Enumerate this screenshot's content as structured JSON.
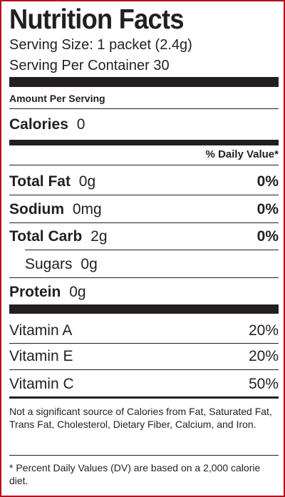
{
  "label": {
    "title": "Nutrition Facts",
    "serving_size": "Serving Size: 1 packet (2.4g)",
    "servings_per_container": "Serving Per Container 30",
    "amount_per_serving": "Amount Per Serving",
    "calories": {
      "label": "Calories",
      "value": "0"
    },
    "dv_header": "% Daily Value*",
    "nutrients": [
      {
        "name": "Total Fat",
        "amount": "0g",
        "dv": "0%"
      },
      {
        "name": "Sodium",
        "amount": "0mg",
        "dv": "0%"
      },
      {
        "name": "Total Carb",
        "amount": "2g",
        "dv": "0%"
      },
      {
        "name": "Sugars",
        "amount": "0g",
        "dv": ""
      },
      {
        "name": "Protein",
        "amount": "0g",
        "dv": ""
      }
    ],
    "vitamins": [
      {
        "name": "Vitamin A",
        "dv": "20%"
      },
      {
        "name": "Vitamin E",
        "dv": "20%"
      },
      {
        "name": "Vitamin C",
        "dv": "50%"
      }
    ],
    "not_significant": "Not a significant source of Calories from Fat, Saturated Fat, Trans Fat, Cholesterol, Dietary Fiber, Calcium, and Iron.",
    "footnote": "* Percent Daily Values (DV) are based on a 2,000 calorie diet."
  },
  "colors": {
    "border": "#b5121b",
    "ink": "#231f20",
    "background": "#ffffff"
  }
}
